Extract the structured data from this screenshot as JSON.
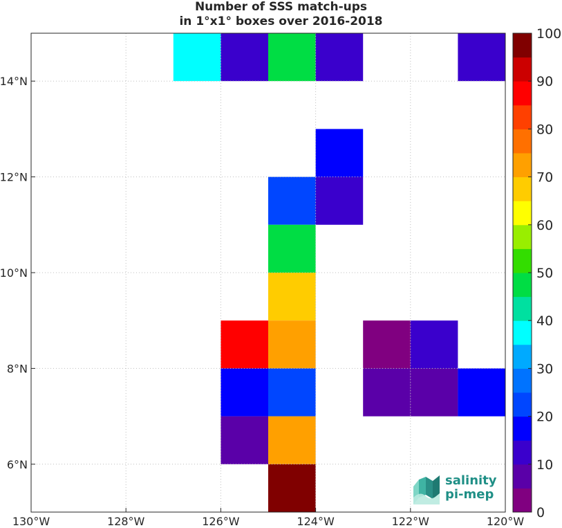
{
  "chart_data": {
    "type": "heatmap",
    "title": "Number of SSS match-ups",
    "subtitle": "in 1°x1° boxes over 2016-2018",
    "x_ticks": [
      "130°W",
      "128°W",
      "126°W",
      "124°W",
      "122°W",
      "120°W"
    ],
    "y_ticks": [
      "6°N",
      "8°N",
      "10°N",
      "12°N",
      "14°N"
    ],
    "xlim": [
      -130,
      -120
    ],
    "ylim": [
      5,
      15
    ],
    "grid": true,
    "colorbar": {
      "ticks": [
        0,
        10,
        20,
        30,
        40,
        50,
        60,
        70,
        80,
        90,
        100
      ],
      "min": 0,
      "max": 100,
      "levels": 20
    },
    "cells": [
      {
        "lon": -127,
        "lat": 14,
        "value": 37
      },
      {
        "lon": -126,
        "lat": 14,
        "value": 12
      },
      {
        "lon": -125,
        "lat": 14,
        "value": 48
      },
      {
        "lon": -124,
        "lat": 14,
        "value": 12
      },
      {
        "lon": -121,
        "lat": 14,
        "value": 12
      },
      {
        "lon": -124,
        "lat": 12,
        "value": 17
      },
      {
        "lon": -125,
        "lat": 11,
        "value": 22
      },
      {
        "lon": -124,
        "lat": 11,
        "value": 12
      },
      {
        "lon": -125,
        "lat": 10,
        "value": 48
      },
      {
        "lon": -125,
        "lat": 9,
        "value": 67
      },
      {
        "lon": -126,
        "lat": 8,
        "value": 88
      },
      {
        "lon": -125,
        "lat": 8,
        "value": 72
      },
      {
        "lon": -123,
        "lat": 8,
        "value": 3
      },
      {
        "lon": -122,
        "lat": 8,
        "value": 12
      },
      {
        "lon": -126,
        "lat": 7,
        "value": 17
      },
      {
        "lon": -125,
        "lat": 7,
        "value": 22
      },
      {
        "lon": -123,
        "lat": 7,
        "value": 7
      },
      {
        "lon": -122,
        "lat": 7,
        "value": 7
      },
      {
        "lon": -121,
        "lat": 7,
        "value": 17
      },
      {
        "lon": -126,
        "lat": 6,
        "value": 7
      },
      {
        "lon": -125,
        "lat": 6,
        "value": 72
      },
      {
        "lon": -125,
        "lat": 5,
        "value": 98
      }
    ]
  },
  "colors": [
    "#800080",
    "#5a00a8",
    "#3a00cc",
    "#0000ff",
    "#0046ff",
    "#0073ff",
    "#00aaff",
    "#00ffff",
    "#00e0a0",
    "#00dd44",
    "#33dd00",
    "#99ee00",
    "#ffff00",
    "#ffcc00",
    "#ffa000",
    "#ff7000",
    "#ff4000",
    "#ff0000",
    "#cc0000",
    "#800000"
  ],
  "logo": {
    "line1": "salinity",
    "line2": "pi-mep",
    "color": "#1f8f86"
  }
}
